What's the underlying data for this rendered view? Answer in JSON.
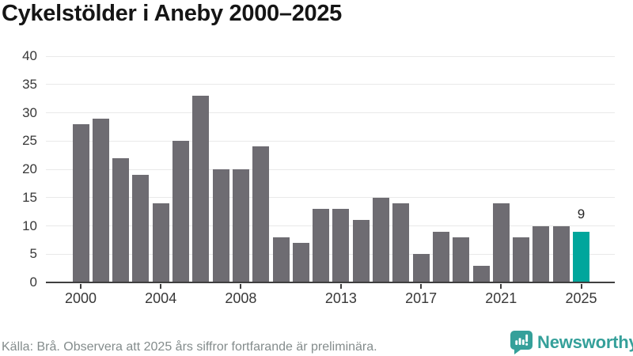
{
  "title": "Cykelstölder i Aneby 2000–2025",
  "footer": {
    "source_note": "Källa: Brå. Observera att 2025 års siffror fortfarande är preliminära.",
    "brand": "Newsworthy"
  },
  "colors": {
    "bar": "#6e6c72",
    "bar_highlight": "#00a69c",
    "gridline": "#e9e9e9",
    "axis": "#3f3f3f",
    "brand_teal": "#35a09a"
  },
  "chart_data": {
    "type": "bar",
    "title": "Cykelstölder i Aneby 2000–2025",
    "categories": [
      2000,
      2001,
      2002,
      2003,
      2004,
      2005,
      2006,
      2007,
      2008,
      2009,
      2010,
      2011,
      2012,
      2013,
      2014,
      2015,
      2016,
      2017,
      2018,
      2019,
      2020,
      2021,
      2022,
      2023,
      2024,
      2025
    ],
    "values": [
      28,
      29,
      22,
      19,
      14,
      25,
      33,
      20,
      20,
      24,
      8,
      7,
      13,
      13,
      11,
      15,
      14,
      5,
      9,
      8,
      3,
      14,
      8,
      10,
      10,
      9
    ],
    "xlabel": "",
    "ylabel": "",
    "ylim": [
      0,
      40
    ],
    "yticks": [
      0,
      5,
      10,
      15,
      20,
      25,
      30,
      35,
      40
    ],
    "xtick_years": [
      2000,
      2004,
      2008,
      2013,
      2017,
      2021,
      2025
    ],
    "grid": true,
    "legend": "none",
    "highlight": {
      "year": 2025,
      "value_label": "9"
    }
  }
}
